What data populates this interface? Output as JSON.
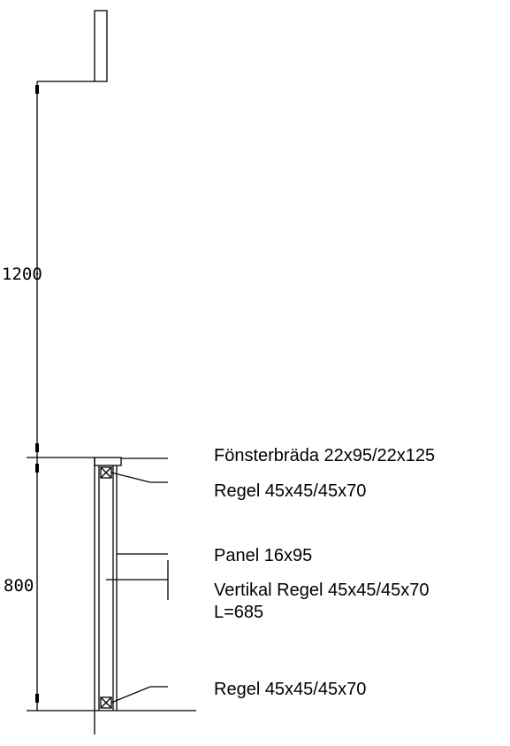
{
  "dimensions": {
    "upper": "1200",
    "lower": "800"
  },
  "labels": {
    "window_board": "Fönsterbräda 22x95/22x125",
    "top_rail": "Regel 45x45/45x70",
    "panel": "Panel 16x95",
    "vertical_rail_line1": "Vertikal Regel 45x45/45x70",
    "vertical_rail_line2": "L=685",
    "bottom_rail": "Regel 45x45/45x70"
  }
}
